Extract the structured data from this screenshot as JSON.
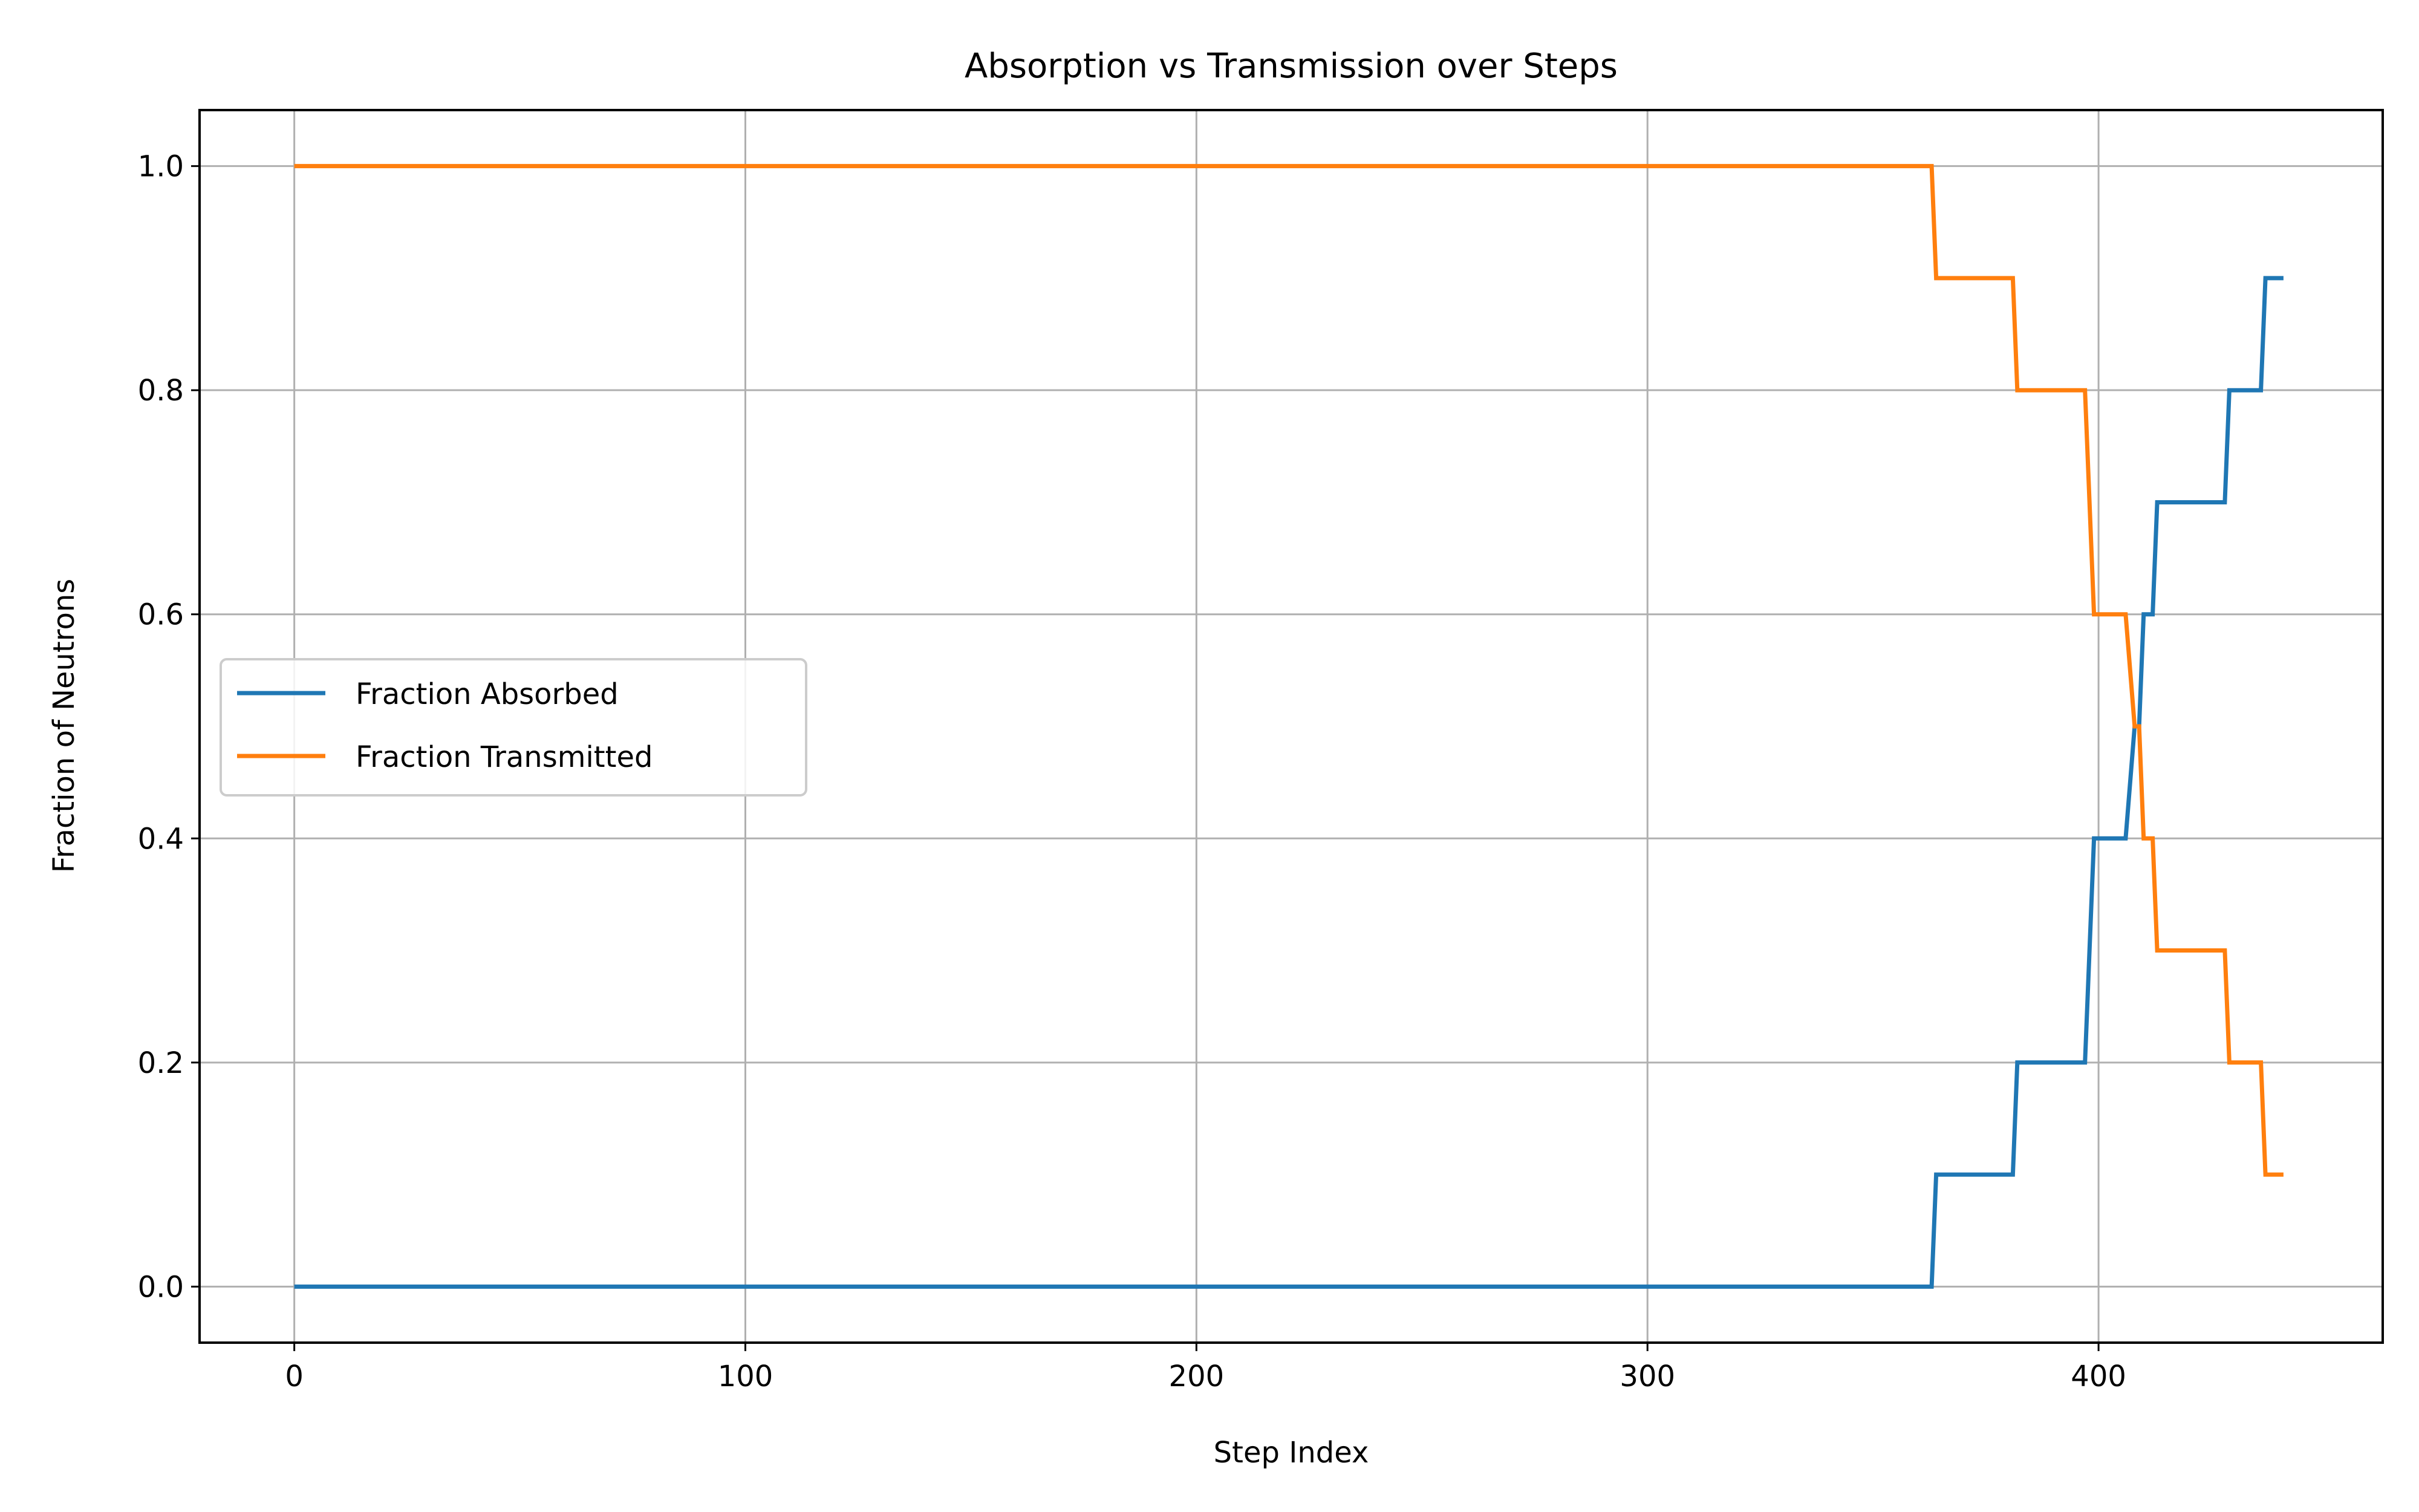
{
  "chart_data": {
    "type": "line",
    "title": "Absorption vs Transmission over Steps",
    "xlabel": "Step Index",
    "ylabel": "Fraction of Neutrons",
    "xlim": [
      -21,
      463
    ],
    "ylim": [
      -0.05,
      1.05
    ],
    "xticks": [
      0,
      100,
      200,
      300,
      400
    ],
    "yticks": [
      0.0,
      0.2,
      0.4,
      0.6,
      0.8,
      1.0
    ],
    "xtick_labels": [
      "0",
      "100",
      "200",
      "300",
      "400"
    ],
    "ytick_labels": [
      "0.0",
      "0.2",
      "0.4",
      "0.6",
      "0.8",
      "1.0"
    ],
    "grid": true,
    "legend_position": "center-left",
    "line_style": "step",
    "series": [
      {
        "name": "Fraction Absorbed",
        "color": "#1f77b4",
        "points": [
          [
            0,
            0.0
          ],
          [
            363,
            0.0
          ],
          [
            364,
            0.1
          ],
          [
            381,
            0.1
          ],
          [
            382,
            0.2
          ],
          [
            397,
            0.2
          ],
          [
            399,
            0.4
          ],
          [
            406,
            0.4
          ],
          [
            408,
            0.5
          ],
          [
            409,
            0.5
          ],
          [
            410,
            0.6
          ],
          [
            412,
            0.6
          ],
          [
            413,
            0.7
          ],
          [
            428,
            0.7
          ],
          [
            429,
            0.8
          ],
          [
            436,
            0.8
          ],
          [
            437,
            0.9
          ],
          [
            441,
            0.9
          ]
        ]
      },
      {
        "name": "Fraction Transmitted",
        "color": "#ff7f0e",
        "points": [
          [
            0,
            1.0
          ],
          [
            363,
            1.0
          ],
          [
            364,
            0.9
          ],
          [
            381,
            0.9
          ],
          [
            382,
            0.8
          ],
          [
            397,
            0.8
          ],
          [
            399,
            0.6
          ],
          [
            406,
            0.6
          ],
          [
            408,
            0.5
          ],
          [
            409,
            0.5
          ],
          [
            410,
            0.4
          ],
          [
            412,
            0.4
          ],
          [
            413,
            0.3
          ],
          [
            428,
            0.3
          ],
          [
            429,
            0.2
          ],
          [
            436,
            0.2
          ],
          [
            437,
            0.1
          ],
          [
            441,
            0.1
          ]
        ]
      }
    ]
  }
}
